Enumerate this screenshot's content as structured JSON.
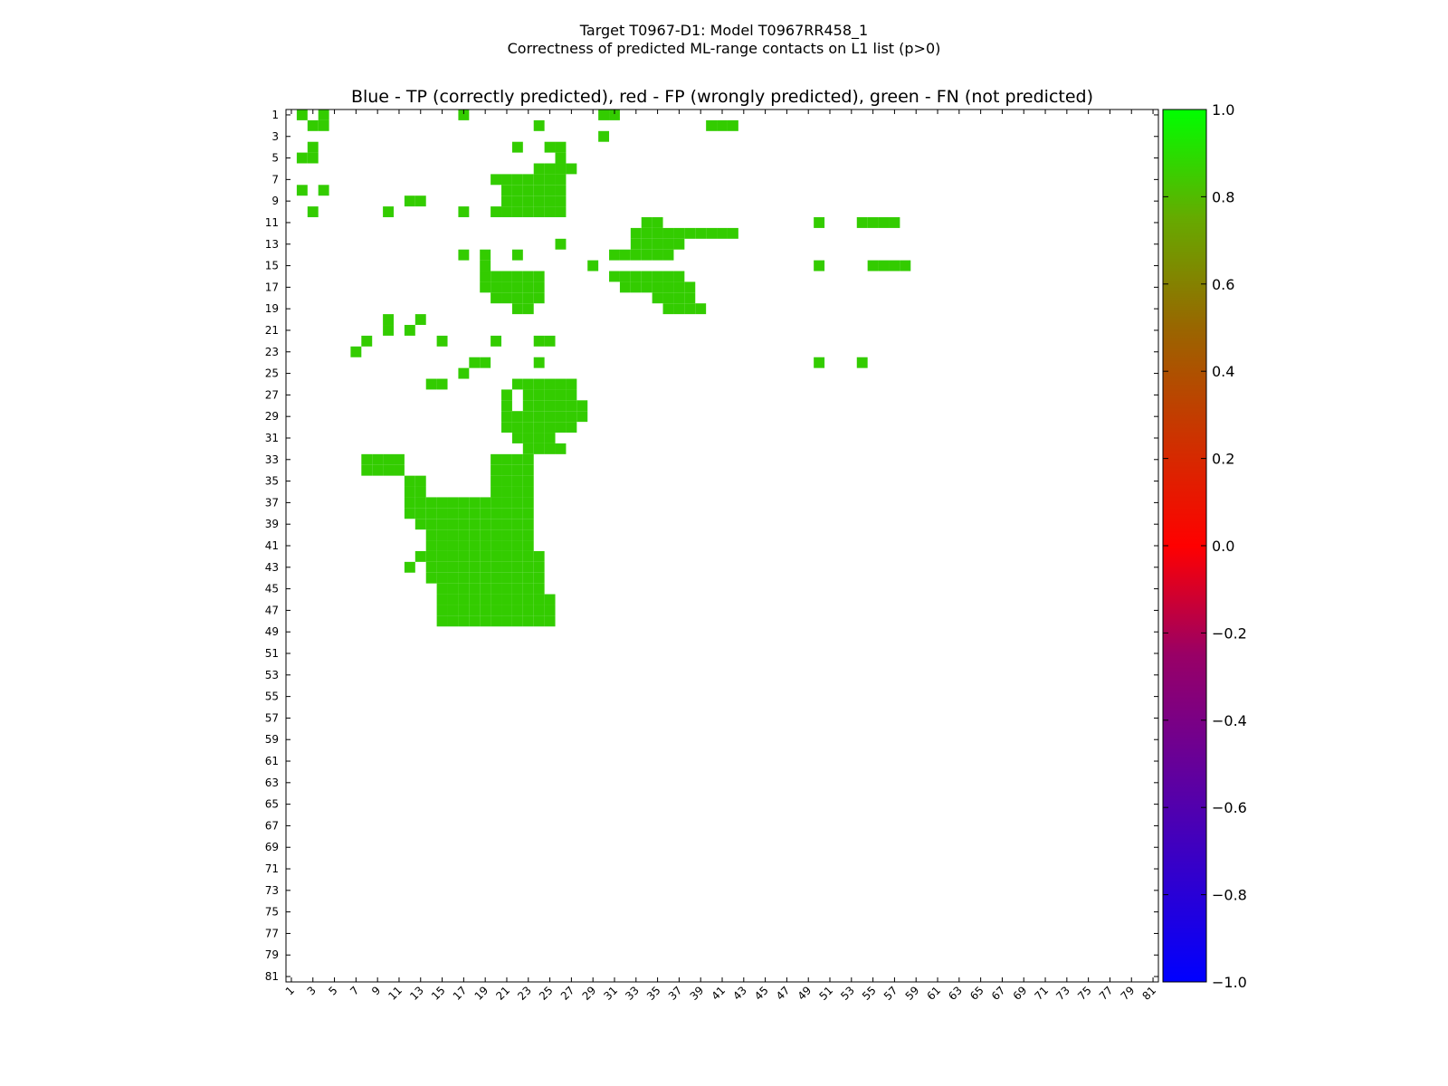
{
  "suptitle_line1": "Target T0967-D1: Model T0967RR458_1",
  "suptitle_line2": "Correctness of predicted ML-range contacts on L1 list (p>0)",
  "chart_data": {
    "type": "heatmap",
    "title": "Blue - TP (correctly predicted), red - FP (wrongly predicted), green - FN (not predicted)",
    "xlabel": "",
    "ylabel": "",
    "n": 81,
    "xlim": [
      1,
      81
    ],
    "ylim": [
      1,
      81
    ],
    "tick_labels": [
      "1",
      "3",
      "5",
      "7",
      "9",
      "11",
      "13",
      "15",
      "17",
      "19",
      "21",
      "23",
      "25",
      "27",
      "29",
      "31",
      "33",
      "35",
      "37",
      "39",
      "41",
      "43",
      "45",
      "47",
      "49",
      "51",
      "53",
      "55",
      "57",
      "59",
      "61",
      "63",
      "65",
      "67",
      "69",
      "71",
      "73",
      "75",
      "77",
      "79",
      "81"
    ],
    "colorbar": {
      "range": [
        -1.0,
        1.0
      ],
      "ticks": [
        "1.0",
        "0.8",
        "0.6",
        "0.4",
        "0.2",
        "0.0",
        "−0.2",
        "−0.4",
        "−0.6",
        "−0.8",
        "−1.0"
      ],
      "stops": [
        {
          "v": -1.0,
          "color": "#0000ff"
        },
        {
          "v": 0.0,
          "color": "#ff0000"
        },
        {
          "v": 1.0,
          "color": "#00ff00"
        }
      ]
    },
    "colors": {
      "TP": "#0000ff",
      "FP": "#ff0000",
      "FN": "#33cc00"
    },
    "cells": {
      "FN": [
        [
          1,
          2
        ],
        [
          1,
          4
        ],
        [
          1,
          17
        ],
        [
          1,
          30
        ],
        [
          1,
          31
        ],
        [
          2,
          3
        ],
        [
          2,
          4
        ],
        [
          2,
          24
        ],
        [
          2,
          40
        ],
        [
          2,
          41
        ],
        [
          2,
          42
        ],
        [
          3,
          30
        ],
        [
          4,
          3
        ],
        [
          4,
          22
        ],
        [
          4,
          25
        ],
        [
          4,
          26
        ],
        [
          5,
          2
        ],
        [
          5,
          3
        ],
        [
          5,
          26
        ],
        [
          6,
          24
        ],
        [
          6,
          25
        ],
        [
          6,
          26
        ],
        [
          6,
          27
        ],
        [
          7,
          20
        ],
        [
          7,
          21
        ],
        [
          7,
          22
        ],
        [
          7,
          23
        ],
        [
          7,
          24
        ],
        [
          7,
          25
        ],
        [
          7,
          26
        ],
        [
          8,
          2
        ],
        [
          8,
          4
        ],
        [
          8,
          21
        ],
        [
          8,
          22
        ],
        [
          8,
          23
        ],
        [
          8,
          24
        ],
        [
          8,
          25
        ],
        [
          8,
          26
        ],
        [
          9,
          12
        ],
        [
          9,
          13
        ],
        [
          9,
          21
        ],
        [
          9,
          22
        ],
        [
          9,
          23
        ],
        [
          9,
          24
        ],
        [
          9,
          25
        ],
        [
          9,
          26
        ],
        [
          10,
          3
        ],
        [
          10,
          10
        ],
        [
          10,
          17
        ],
        [
          10,
          20
        ],
        [
          10,
          21
        ],
        [
          10,
          22
        ],
        [
          10,
          23
        ],
        [
          10,
          24
        ],
        [
          10,
          25
        ],
        [
          10,
          26
        ],
        [
          11,
          34
        ],
        [
          11,
          35
        ],
        [
          11,
          50
        ],
        [
          11,
          54
        ],
        [
          11,
          55
        ],
        [
          11,
          56
        ],
        [
          11,
          57
        ],
        [
          12,
          33
        ],
        [
          12,
          34
        ],
        [
          12,
          35
        ],
        [
          12,
          36
        ],
        [
          12,
          37
        ],
        [
          12,
          38
        ],
        [
          12,
          39
        ],
        [
          12,
          40
        ],
        [
          12,
          41
        ],
        [
          12,
          42
        ],
        [
          13,
          26
        ],
        [
          13,
          33
        ],
        [
          13,
          34
        ],
        [
          13,
          35
        ],
        [
          13,
          36
        ],
        [
          13,
          37
        ],
        [
          14,
          17
        ],
        [
          14,
          19
        ],
        [
          14,
          22
        ],
        [
          14,
          31
        ],
        [
          14,
          32
        ],
        [
          14,
          33
        ],
        [
          14,
          34
        ],
        [
          14,
          35
        ],
        [
          14,
          36
        ],
        [
          15,
          19
        ],
        [
          15,
          29
        ],
        [
          15,
          50
        ],
        [
          15,
          55
        ],
        [
          15,
          56
        ],
        [
          15,
          57
        ],
        [
          15,
          58
        ],
        [
          16,
          19
        ],
        [
          16,
          20
        ],
        [
          16,
          21
        ],
        [
          16,
          22
        ],
        [
          16,
          23
        ],
        [
          16,
          24
        ],
        [
          16,
          31
        ],
        [
          16,
          32
        ],
        [
          16,
          33
        ],
        [
          16,
          34
        ],
        [
          16,
          35
        ],
        [
          16,
          36
        ],
        [
          16,
          37
        ],
        [
          17,
          19
        ],
        [
          17,
          20
        ],
        [
          17,
          21
        ],
        [
          17,
          22
        ],
        [
          17,
          23
        ],
        [
          17,
          24
        ],
        [
          17,
          32
        ],
        [
          17,
          33
        ],
        [
          17,
          34
        ],
        [
          17,
          35
        ],
        [
          17,
          36
        ],
        [
          17,
          37
        ],
        [
          17,
          38
        ],
        [
          18,
          20
        ],
        [
          18,
          21
        ],
        [
          18,
          22
        ],
        [
          18,
          23
        ],
        [
          18,
          24
        ],
        [
          18,
          35
        ],
        [
          18,
          36
        ],
        [
          18,
          37
        ],
        [
          18,
          38
        ],
        [
          19,
          22
        ],
        [
          19,
          23
        ],
        [
          19,
          36
        ],
        [
          19,
          37
        ],
        [
          19,
          38
        ],
        [
          19,
          39
        ],
        [
          20,
          10
        ],
        [
          20,
          13
        ],
        [
          21,
          10
        ],
        [
          21,
          12
        ],
        [
          22,
          8
        ],
        [
          22,
          15
        ],
        [
          22,
          20
        ],
        [
          22,
          24
        ],
        [
          22,
          25
        ],
        [
          23,
          7
        ],
        [
          24,
          18
        ],
        [
          24,
          19
        ],
        [
          24,
          24
        ],
        [
          24,
          50
        ],
        [
          24,
          54
        ],
        [
          25,
          17
        ],
        [
          26,
          14
        ],
        [
          26,
          15
        ],
        [
          26,
          22
        ],
        [
          26,
          23
        ],
        [
          26,
          24
        ],
        [
          26,
          25
        ],
        [
          26,
          26
        ],
        [
          26,
          27
        ],
        [
          27,
          21
        ],
        [
          27,
          23
        ],
        [
          27,
          24
        ],
        [
          27,
          25
        ],
        [
          27,
          26
        ],
        [
          27,
          27
        ],
        [
          28,
          21
        ],
        [
          28,
          23
        ],
        [
          28,
          24
        ],
        [
          28,
          25
        ],
        [
          28,
          26
        ],
        [
          28,
          27
        ],
        [
          28,
          28
        ],
        [
          29,
          21
        ],
        [
          29,
          22
        ],
        [
          29,
          23
        ],
        [
          29,
          24
        ],
        [
          29,
          25
        ],
        [
          29,
          26
        ],
        [
          29,
          27
        ],
        [
          29,
          28
        ],
        [
          30,
          21
        ],
        [
          30,
          22
        ],
        [
          30,
          23
        ],
        [
          30,
          24
        ],
        [
          30,
          25
        ],
        [
          30,
          26
        ],
        [
          30,
          27
        ],
        [
          31,
          22
        ],
        [
          31,
          23
        ],
        [
          31,
          24
        ],
        [
          31,
          25
        ],
        [
          32,
          23
        ],
        [
          32,
          24
        ],
        [
          32,
          25
        ],
        [
          32,
          26
        ],
        [
          33,
          8
        ],
        [
          33,
          9
        ],
        [
          33,
          10
        ],
        [
          33,
          11
        ],
        [
          33,
          20
        ],
        [
          33,
          21
        ],
        [
          33,
          22
        ],
        [
          33,
          23
        ],
        [
          34,
          8
        ],
        [
          34,
          9
        ],
        [
          34,
          10
        ],
        [
          34,
          11
        ],
        [
          34,
          20
        ],
        [
          34,
          21
        ],
        [
          34,
          22
        ],
        [
          34,
          23
        ],
        [
          35,
          12
        ],
        [
          35,
          13
        ],
        [
          35,
          20
        ],
        [
          35,
          21
        ],
        [
          35,
          22
        ],
        [
          35,
          23
        ],
        [
          36,
          12
        ],
        [
          36,
          13
        ],
        [
          36,
          20
        ],
        [
          36,
          21
        ],
        [
          36,
          22
        ],
        [
          36,
          23
        ],
        [
          37,
          12
        ],
        [
          37,
          13
        ],
        [
          37,
          14
        ],
        [
          37,
          15
        ],
        [
          37,
          16
        ],
        [
          37,
          17
        ],
        [
          37,
          18
        ],
        [
          37,
          19
        ],
        [
          37,
          20
        ],
        [
          37,
          21
        ],
        [
          37,
          22
        ],
        [
          37,
          23
        ],
        [
          38,
          12
        ],
        [
          38,
          13
        ],
        [
          38,
          14
        ],
        [
          38,
          15
        ],
        [
          38,
          16
        ],
        [
          38,
          17
        ],
        [
          38,
          18
        ],
        [
          38,
          19
        ],
        [
          38,
          20
        ],
        [
          38,
          21
        ],
        [
          38,
          22
        ],
        [
          38,
          23
        ],
        [
          39,
          13
        ],
        [
          39,
          14
        ],
        [
          39,
          15
        ],
        [
          39,
          16
        ],
        [
          39,
          17
        ],
        [
          39,
          18
        ],
        [
          39,
          19
        ],
        [
          39,
          20
        ],
        [
          39,
          21
        ],
        [
          39,
          22
        ],
        [
          39,
          23
        ],
        [
          40,
          14
        ],
        [
          40,
          15
        ],
        [
          40,
          16
        ],
        [
          40,
          17
        ],
        [
          40,
          18
        ],
        [
          40,
          19
        ],
        [
          40,
          20
        ],
        [
          40,
          21
        ],
        [
          40,
          22
        ],
        [
          40,
          23
        ],
        [
          41,
          14
        ],
        [
          41,
          15
        ],
        [
          41,
          16
        ],
        [
          41,
          17
        ],
        [
          41,
          18
        ],
        [
          41,
          19
        ],
        [
          41,
          20
        ],
        [
          41,
          21
        ],
        [
          41,
          22
        ],
        [
          41,
          23
        ],
        [
          42,
          13
        ],
        [
          42,
          14
        ],
        [
          42,
          15
        ],
        [
          42,
          16
        ],
        [
          42,
          17
        ],
        [
          42,
          18
        ],
        [
          42,
          19
        ],
        [
          42,
          20
        ],
        [
          42,
          21
        ],
        [
          42,
          22
        ],
        [
          42,
          23
        ],
        [
          42,
          24
        ],
        [
          43,
          12
        ],
        [
          43,
          14
        ],
        [
          43,
          15
        ],
        [
          43,
          16
        ],
        [
          43,
          17
        ],
        [
          43,
          18
        ],
        [
          43,
          19
        ],
        [
          43,
          20
        ],
        [
          43,
          21
        ],
        [
          43,
          22
        ],
        [
          43,
          23
        ],
        [
          43,
          24
        ],
        [
          44,
          14
        ],
        [
          44,
          15
        ],
        [
          44,
          16
        ],
        [
          44,
          17
        ],
        [
          44,
          18
        ],
        [
          44,
          19
        ],
        [
          44,
          20
        ],
        [
          44,
          21
        ],
        [
          44,
          22
        ],
        [
          44,
          23
        ],
        [
          44,
          24
        ],
        [
          45,
          15
        ],
        [
          45,
          16
        ],
        [
          45,
          17
        ],
        [
          45,
          18
        ],
        [
          45,
          19
        ],
        [
          45,
          20
        ],
        [
          45,
          21
        ],
        [
          45,
          22
        ],
        [
          45,
          23
        ],
        [
          45,
          24
        ],
        [
          46,
          15
        ],
        [
          46,
          16
        ],
        [
          46,
          17
        ],
        [
          46,
          18
        ],
        [
          46,
          19
        ],
        [
          46,
          20
        ],
        [
          46,
          21
        ],
        [
          46,
          22
        ],
        [
          46,
          23
        ],
        [
          46,
          24
        ],
        [
          46,
          25
        ],
        [
          47,
          15
        ],
        [
          47,
          16
        ],
        [
          47,
          17
        ],
        [
          47,
          18
        ],
        [
          47,
          19
        ],
        [
          47,
          20
        ],
        [
          47,
          21
        ],
        [
          47,
          22
        ],
        [
          47,
          23
        ],
        [
          47,
          24
        ],
        [
          47,
          25
        ],
        [
          48,
          15
        ],
        [
          48,
          16
        ],
        [
          48,
          17
        ],
        [
          48,
          18
        ],
        [
          48,
          19
        ],
        [
          48,
          20
        ],
        [
          48,
          21
        ],
        [
          48,
          22
        ],
        [
          48,
          23
        ],
        [
          48,
          24
        ],
        [
          48,
          25
        ]
      ],
      "FP": [],
      "TP": []
    }
  }
}
